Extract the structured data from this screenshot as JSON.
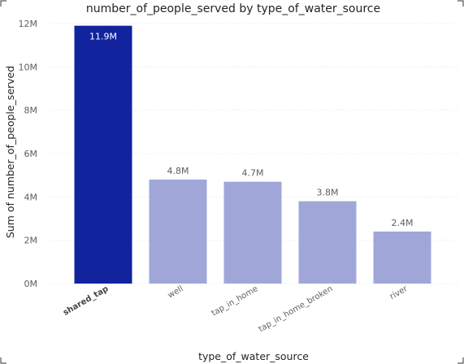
{
  "chart_data": {
    "type": "bar",
    "title": "number_of_people_served by type_of_water_source",
    "xlabel": "type_of_water_source",
    "ylabel": "Sum of number_of_people_served",
    "categories": [
      "shared_tap",
      "well",
      "tap_in_home",
      "tap_in_home_broken",
      "river"
    ],
    "values": [
      11.9,
      4.8,
      4.7,
      3.8,
      2.4
    ],
    "data_labels": [
      "11.9M",
      "4.8M",
      "4.7M",
      "3.8M",
      "2.4M"
    ],
    "y_ticks": [
      0,
      2,
      4,
      6,
      8,
      10,
      12
    ],
    "y_tick_labels": [
      "0M",
      "2M",
      "4M",
      "6M",
      "8M",
      "10M",
      "12M"
    ],
    "ylim": [
      0,
      12
    ],
    "grid": true,
    "highlighted_category": "shared_tap",
    "colors": {
      "highlight": "#12239e",
      "normal": "#a0a7d8"
    }
  }
}
